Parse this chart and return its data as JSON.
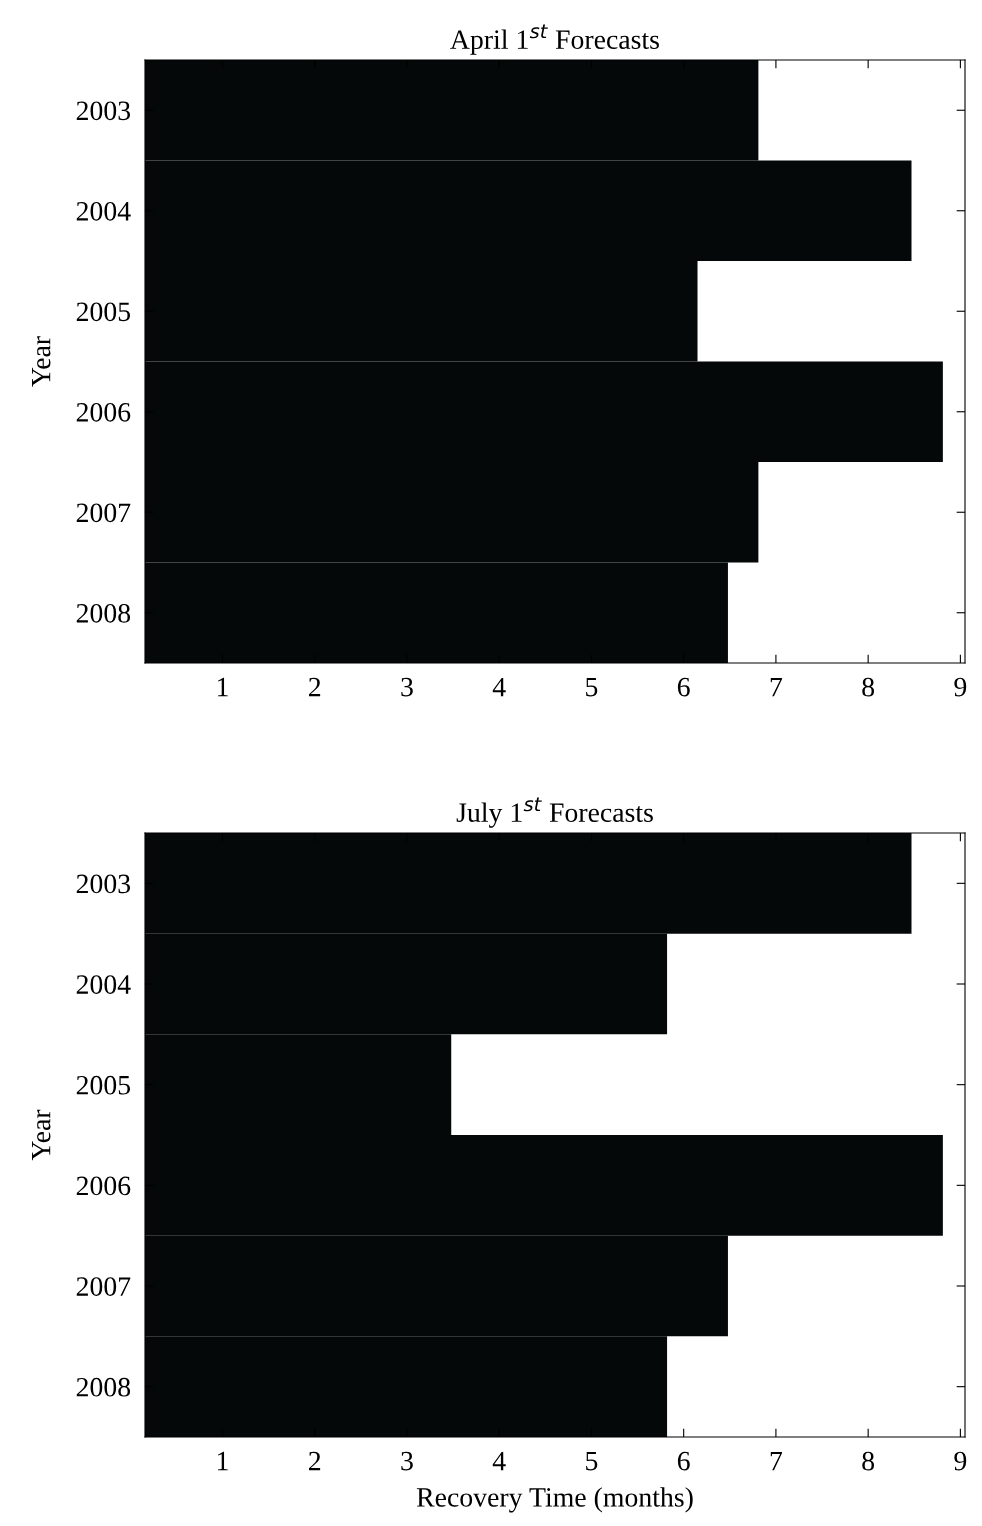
{
  "chart_data": [
    {
      "type": "bar",
      "orientation": "horizontal",
      "title": "April 1$^{st}$ Forecasts",
      "ylabel": "Year",
      "categories": [
        "2003",
        "2004",
        "2005",
        "2006",
        "2007",
        "2008"
      ],
      "values": [
        6.81,
        8.47,
        6.15,
        8.81,
        6.81,
        6.48
      ],
      "color": "#050808",
      "xlim": [
        0.16,
        9.05
      ],
      "xticks": [
        1,
        2,
        3,
        4,
        5,
        6,
        7,
        8,
        9
      ],
      "grid": false
    },
    {
      "type": "bar",
      "orientation": "horizontal",
      "title": "July 1$^{st}$ Forecasts",
      "xlabel": "Recovery Time (months)",
      "ylabel": "Year",
      "categories": [
        "2003",
        "2004",
        "2005",
        "2006",
        "2007",
        "2008"
      ],
      "values": [
        8.47,
        5.82,
        3.48,
        8.81,
        6.48,
        5.82
      ],
      "color": "#050808",
      "xlim": [
        0.16,
        9.05
      ],
      "xticks": [
        1,
        2,
        3,
        4,
        5,
        6,
        7,
        8,
        9
      ],
      "grid": false
    }
  ]
}
